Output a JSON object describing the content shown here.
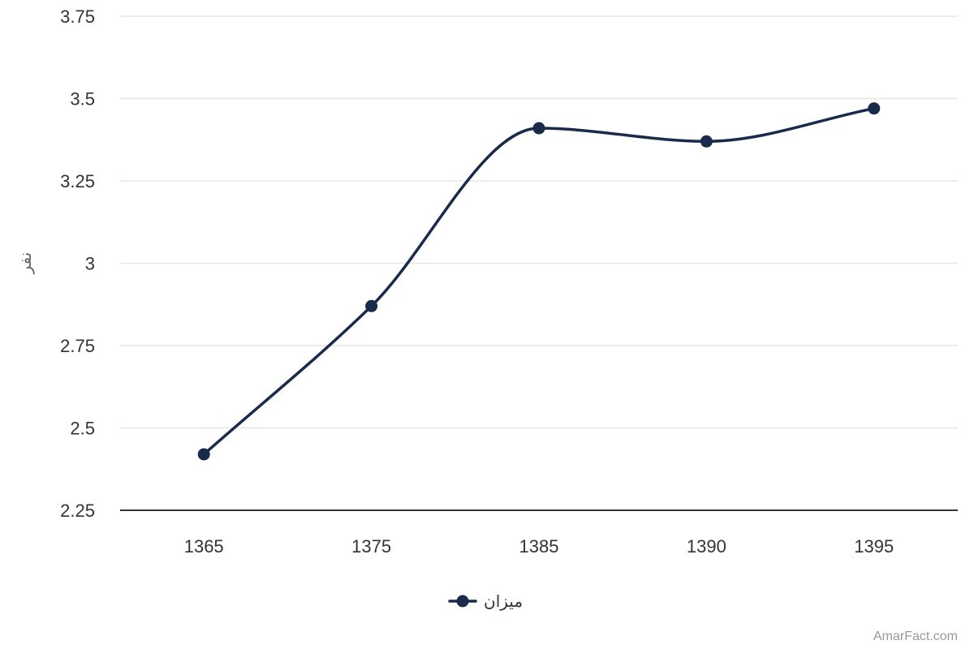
{
  "chart_data": {
    "type": "line",
    "categories": [
      "1365",
      "1375",
      "1385",
      "1390",
      "1395"
    ],
    "series": [
      {
        "name": "میزان",
        "values": [
          2.42,
          2.87,
          3.41,
          3.37,
          3.47
        ],
        "color": "#1a2a4a"
      }
    ],
    "ylabel": "نفر",
    "xlabel": "",
    "title": "",
    "ylim": [
      2.25,
      3.75
    ],
    "yticks": [
      "2.25",
      "2.5",
      "2.75",
      "3",
      "3.25",
      "3.5",
      "3.75"
    ],
    "smooth": true,
    "grid": true,
    "legend": "bottom-center"
  },
  "credit": "AmarFact.com"
}
